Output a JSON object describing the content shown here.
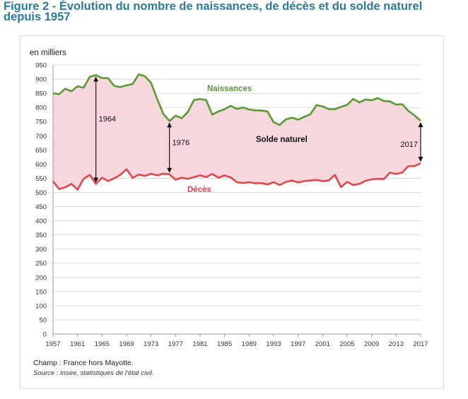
{
  "figure_title": "Figure 2 - Évolution du nombre de naissances, de décès et du solde naturel depuis 1957",
  "footnotes": {
    "champ": "Champ : France hors Mayotte.",
    "source": "Source : Insee, statistiques de l'état civil."
  },
  "colors": {
    "title": "#2b7a9c",
    "births": "#5a9a32",
    "deaths": "#e0474c",
    "fill": "#f7d7de",
    "grid": "#d0d0d0"
  },
  "chart_data": {
    "type": "line",
    "ylabel": "en milliers",
    "ylim": [
      0,
      950
    ],
    "yticks": [
      0,
      50,
      100,
      150,
      200,
      250,
      300,
      350,
      400,
      450,
      500,
      550,
      600,
      650,
      700,
      750,
      800,
      850,
      900,
      950
    ],
    "xlim": [
      1957,
      2017
    ],
    "xticks": [
      1957,
      1961,
      1965,
      1969,
      1973,
      1977,
      1981,
      1985,
      1989,
      1993,
      1997,
      2001,
      2005,
      2009,
      2013,
      2017
    ],
    "x": [
      1957,
      1958,
      1959,
      1960,
      1961,
      1962,
      1963,
      1964,
      1965,
      1966,
      1967,
      1968,
      1969,
      1970,
      1971,
      1972,
      1973,
      1974,
      1975,
      1976,
      1977,
      1978,
      1979,
      1980,
      1981,
      1982,
      1983,
      1984,
      1985,
      1986,
      1987,
      1988,
      1989,
      1990,
      1991,
      1992,
      1993,
      1994,
      1995,
      1996,
      1997,
      1998,
      1999,
      2000,
      2001,
      2002,
      2003,
      2004,
      2005,
      2006,
      2007,
      2008,
      2009,
      2010,
      2011,
      2012,
      2013,
      2014,
      2015,
      2016,
      2017
    ],
    "series": [
      {
        "name": "Naissances",
        "values": [
          850,
          847,
          866,
          857,
          875,
          870,
          908,
          914,
          904,
          903,
          876,
          872,
          878,
          883,
          917,
          910,
          887,
          830,
          777,
          752,
          771,
          762,
          784,
          826,
          830,
          826,
          775,
          786,
          794,
          806,
          795,
          800,
          793,
          790,
          789,
          786,
          748,
          738,
          758,
          764,
          757,
          767,
          776,
          808,
          804,
          794,
          794,
          802,
          809,
          830,
          818,
          828,
          825,
          833,
          823,
          821,
          810,
          811,
          788,
          772,
          753
        ]
      },
      {
        "name": "Décès",
        "values": [
          539,
          512,
          518,
          530,
          510,
          548,
          562,
          530,
          552,
          540,
          550,
          562,
          582,
          551,
          563,
          558,
          566,
          560,
          566,
          564,
          545,
          552,
          548,
          554,
          560,
          554,
          565,
          552,
          560,
          553,
          536,
          533,
          536,
          532,
          533,
          528,
          536,
          526,
          537,
          542,
          535,
          540,
          542,
          544,
          540,
          542,
          562,
          519,
          537,
          526,
          530,
          541,
          546,
          548,
          547,
          570,
          565,
          570,
          593,
          593,
          603
        ]
      }
    ],
    "annotations": [
      {
        "label": "1964",
        "year": 1964,
        "from": 530,
        "to": 914
      },
      {
        "label": "1976",
        "year": 1976,
        "from": 564,
        "to": 752
      },
      {
        "label": "2017",
        "year": 2017,
        "from": 603,
        "to": 753
      }
    ],
    "area_label": "Solde naturel",
    "series_labels": {
      "births": "Naissances",
      "deaths": "Décès"
    }
  }
}
